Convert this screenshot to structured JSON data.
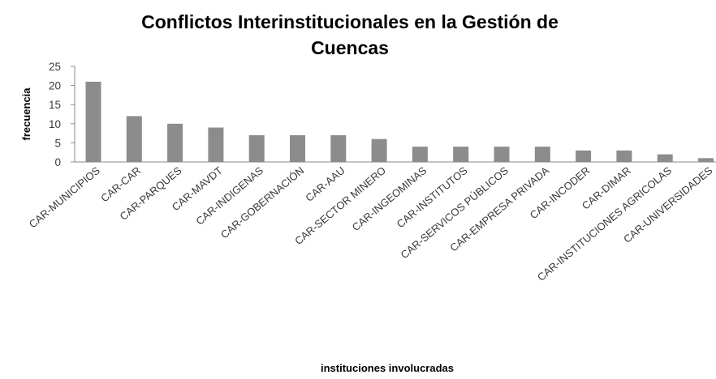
{
  "chart_data": {
    "type": "bar",
    "title": "Conflictos Interinstitucionales en la Gestión de Cuencas",
    "title_lines": [
      "Conflictos Interinstitucionales en la Gestión de",
      "Cuencas"
    ],
    "xlabel": "instituciones involucradas",
    "ylabel": "frecuencia",
    "ylim": [
      0,
      25
    ],
    "yticks": [
      0,
      5,
      10,
      15,
      20,
      25
    ],
    "grid": false,
    "legend": "none",
    "bar_color": "#8c8c8c",
    "categories": [
      "CAR-MUNICIPIOS",
      "CAR-CAR",
      "CAR-PARQUES",
      "CAR-MAVDT",
      "CAR-INDIGENAS",
      "CAR-GOBERNACIÓN",
      "CAR-AAU",
      "CAR-SECTOR MINERO",
      "CAR-INGEOMINAS",
      "CAR-INSTITUTOS",
      "CAR-SERVICOS PÚBLICOS",
      "CAR-EMPRESA PRIVADA",
      "CAR-INCODER",
      "CAR-DIMAR",
      "CAR-INSTITUCIONES AGRICOLAS",
      "CAR-UNIVERSIDADES"
    ],
    "values": [
      21,
      12,
      10,
      9,
      7,
      7,
      7,
      6,
      4,
      4,
      4,
      4,
      3,
      3,
      2,
      1
    ]
  }
}
